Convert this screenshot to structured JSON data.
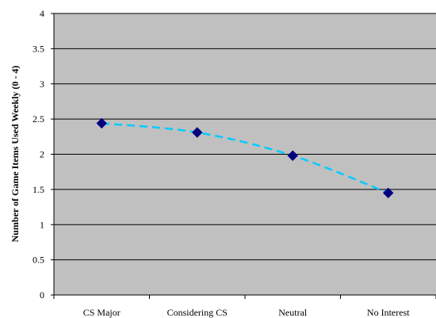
{
  "chart_data": {
    "type": "line",
    "title": "",
    "xlabel": "",
    "ylabel": "Number of Game Items Used Weekly  (0 - 4)",
    "categories": [
      "CS Major",
      "Considering CS",
      "Neutral",
      "No Interest"
    ],
    "series": [
      {
        "values": [
          2.44,
          2.31,
          1.98,
          1.45
        ]
      }
    ],
    "ylim": [
      0,
      4
    ],
    "yticks": [
      0,
      0.5,
      1,
      1.5,
      2,
      2.5,
      3,
      3.5,
      4
    ],
    "ytick_labels": [
      "0",
      "0.5",
      "1",
      "1.5",
      "2",
      "2.5",
      "3",
      "3.5",
      "4"
    ],
    "grid": true,
    "legend": "none",
    "colors": {
      "plot_background": "#c0c0c0",
      "gridline": "#000000",
      "trend_line": "#00ccff",
      "marker": "#000080"
    },
    "line_style": "dashed smoothed",
    "marker_shape": "diamond"
  }
}
